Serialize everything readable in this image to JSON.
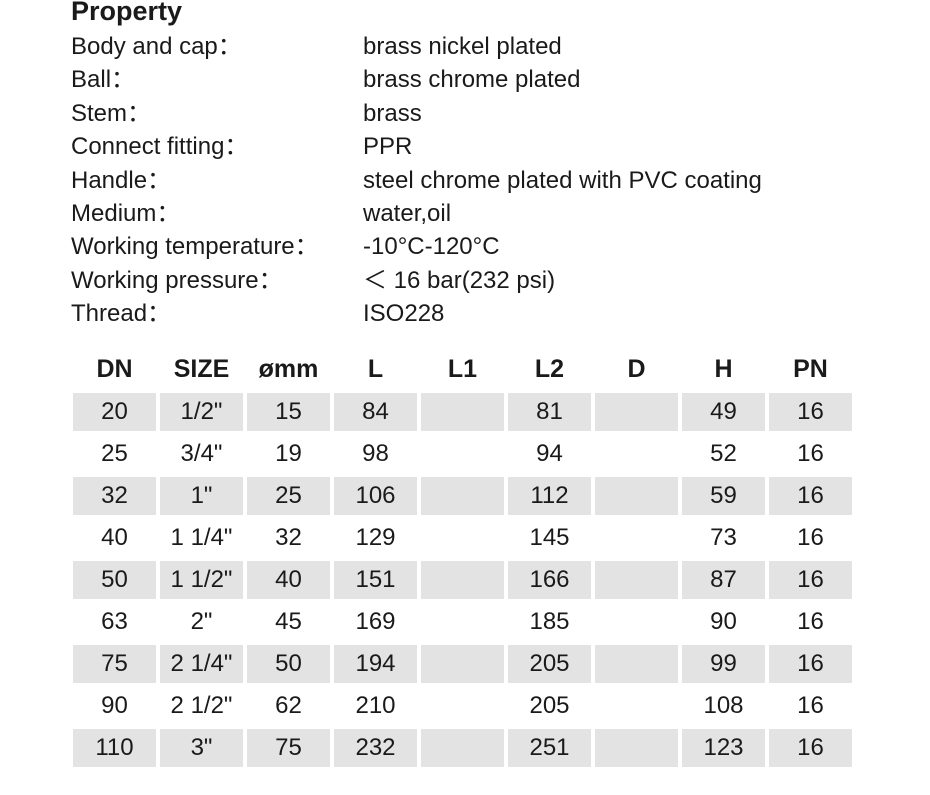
{
  "property": {
    "title": "Property",
    "rows": [
      {
        "label": "Body and cap：",
        "value": "brass nickel plated"
      },
      {
        "label": "Ball：",
        "value": "brass chrome plated"
      },
      {
        "label": "Stem：",
        "value": "brass"
      },
      {
        "label": "Connect fitting：",
        "value": "PPR"
      },
      {
        "label": "Handle：",
        "value": "steel chrome plated with PVC coating"
      },
      {
        "label": "Medium：",
        "value": "water,oil"
      },
      {
        "label": "Working temperature：",
        "value": "-10°C-120°C"
      },
      {
        "label": "Working pressure：",
        "value": "＜ 16 bar(232 psi)"
      },
      {
        "label": "Thread：",
        "value": "ISO228"
      }
    ]
  },
  "table": {
    "headers": [
      "DN",
      "SIZE",
      "ømm",
      "L",
      "L1",
      "L2",
      "D",
      "H",
      "PN"
    ],
    "rows": [
      [
        "20",
        "1/2\"",
        "15",
        "84",
        "",
        "81",
        "",
        "49",
        "16"
      ],
      [
        "25",
        "3/4\"",
        "19",
        "98",
        "",
        "94",
        "",
        "52",
        "16"
      ],
      [
        "32",
        "1\"",
        "25",
        "106",
        "",
        "112",
        "",
        "59",
        "16"
      ],
      [
        "40",
        "1 1/4\"",
        "32",
        "129",
        "",
        "145",
        "",
        "73",
        "16"
      ],
      [
        "50",
        "1 1/2\"",
        "40",
        "151",
        "",
        "166",
        "",
        "87",
        "16"
      ],
      [
        "63",
        "2\"",
        "45",
        "169",
        "",
        "185",
        "",
        "90",
        "16"
      ],
      [
        "75",
        "2 1/4\"",
        "50",
        "194",
        "",
        "205",
        "",
        "99",
        "16"
      ],
      [
        "90",
        "2 1/2\"",
        "62",
        "210",
        "",
        "205",
        "",
        "108",
        "16"
      ],
      [
        "110",
        "3\"",
        "75",
        "232",
        "",
        "251",
        "",
        "123",
        "16"
      ]
    ]
  }
}
